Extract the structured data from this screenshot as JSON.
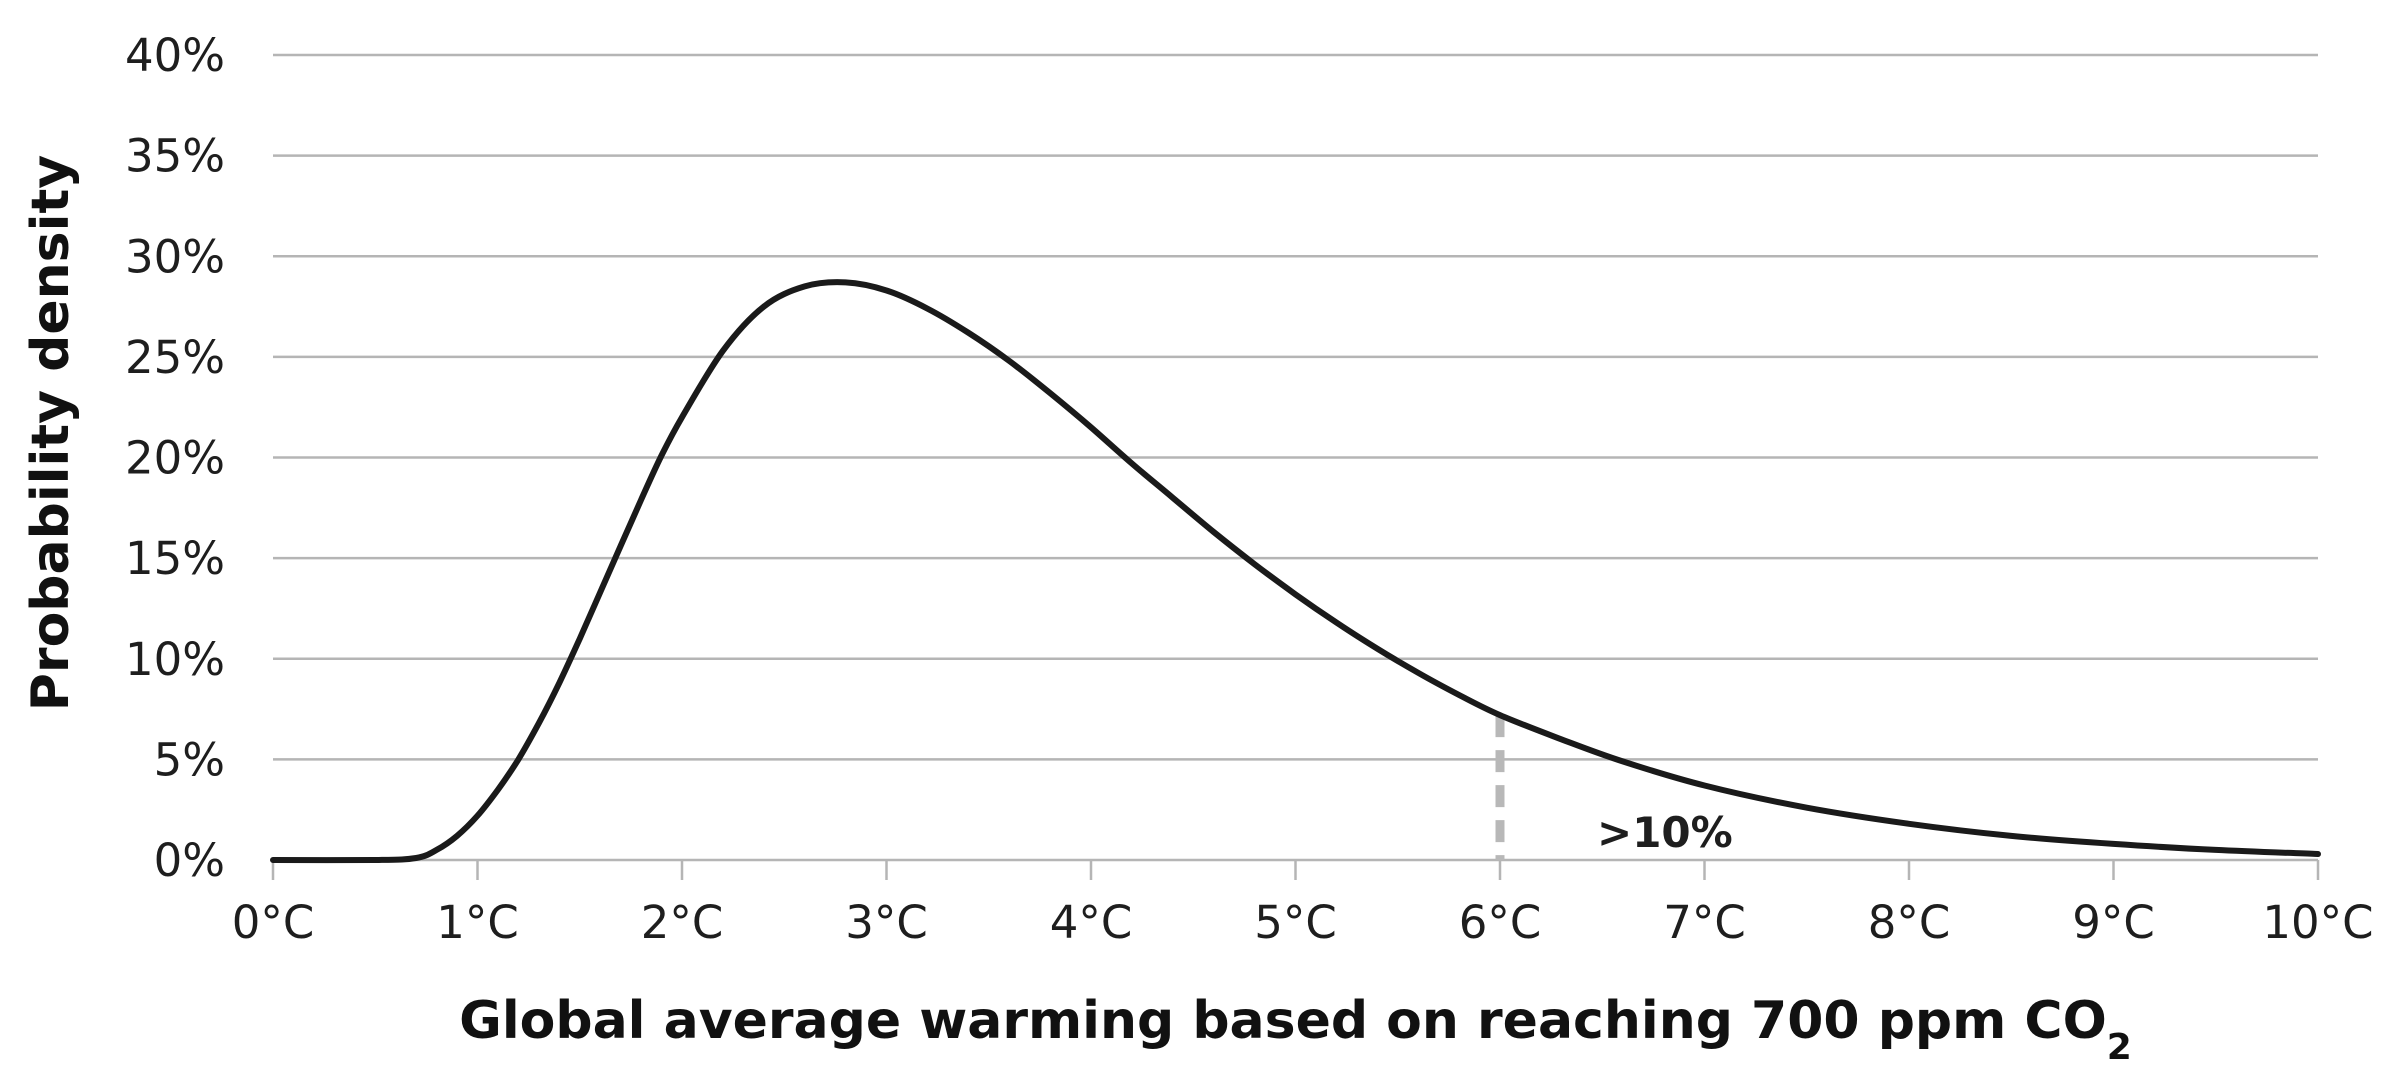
{
  "chart_data": {
    "type": "line",
    "title": "",
    "xlabel": "Global average warming based on reaching 700 ppm CO",
    "xlabel_subscript": "2",
    "ylabel": "Probability density",
    "xlim": [
      0,
      10
    ],
    "ylim": [
      0,
      40
    ],
    "x_ticks": [
      0,
      1,
      2,
      3,
      4,
      5,
      6,
      7,
      8,
      9,
      10
    ],
    "x_tick_labels": [
      "0°C",
      "1°C",
      "2°C",
      "3°C",
      "4°C",
      "5°C",
      "6°C",
      "7°C",
      "8°C",
      "9°C",
      "10°C"
    ],
    "y_ticks": [
      0,
      5,
      10,
      15,
      20,
      25,
      30,
      35,
      40
    ],
    "y_tick_labels": [
      "0%",
      "5%",
      "10%",
      "15%",
      "20%",
      "25%",
      "30%",
      "35%",
      "40%"
    ],
    "grid": true,
    "series": [
      {
        "x": [
          0,
          0.5,
          0.7,
          0.8,
          0.9,
          1.0,
          1.1,
          1.2,
          1.3,
          1.4,
          1.5,
          1.6,
          1.7,
          1.8,
          1.9,
          2.0,
          2.2,
          2.4,
          2.6,
          2.8,
          3.0,
          3.2,
          3.4,
          3.6,
          3.8,
          4.0,
          4.2,
          4.4,
          4.6,
          4.8,
          5.0,
          5.2,
          5.4,
          5.6,
          5.8,
          6.0,
          6.3,
          6.6,
          7.0,
          7.5,
          8.0,
          8.5,
          9.0,
          9.5,
          10.0
        ],
        "y": [
          0,
          0,
          0.1,
          0.5,
          1.2,
          2.2,
          3.5,
          5.0,
          6.8,
          8.8,
          11.0,
          13.3,
          15.6,
          17.9,
          20.1,
          22.0,
          25.3,
          27.5,
          28.5,
          28.7,
          28.3,
          27.4,
          26.2,
          24.8,
          23.2,
          21.5,
          19.7,
          18.0,
          16.3,
          14.7,
          13.2,
          11.8,
          10.5,
          9.3,
          8.2,
          7.2,
          6.0,
          4.9,
          3.7,
          2.6,
          1.8,
          1.2,
          0.8,
          0.5,
          0.3
        ]
      }
    ],
    "threshold": {
      "x": 6,
      "y_top": 7.2,
      "label": ">10%"
    }
  }
}
